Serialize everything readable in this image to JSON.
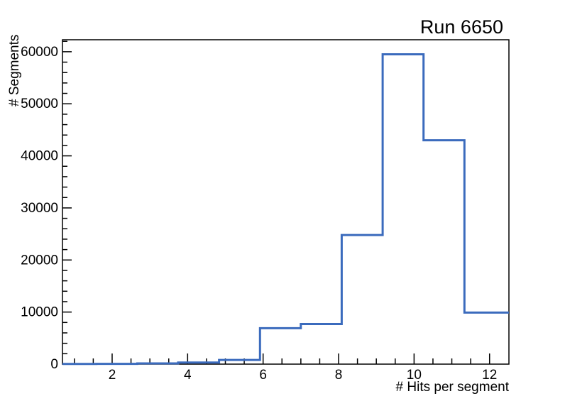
{
  "window": {
    "background": "#ffffff"
  },
  "chart_data": {
    "type": "histogram-step",
    "title": "Run 6650",
    "xlabel": "# Hits per segment",
    "ylabel": "# Segments",
    "xlim": [
      0.684,
      12.513
    ],
    "ylim": [
      0,
      62300
    ],
    "x_tick_values": [
      2,
      4,
      6,
      8,
      10,
      12
    ],
    "x_tick_labels": [
      "2",
      "4",
      "6",
      "8",
      "10",
      "12"
    ],
    "x_minor_step": 0.5,
    "y_tick_values": [
      0,
      10000,
      20000,
      30000,
      40000,
      50000,
      60000
    ],
    "y_tick_labels": [
      "0",
      "10000",
      "20000",
      "30000",
      "40000",
      "50000",
      "60000"
    ],
    "y_minor_step": 2000,
    "bin_edges": [
      0.684,
      1.583,
      2.667,
      3.75,
      4.833,
      5.917,
      7.0,
      8.083,
      9.167,
      10.25,
      11.333,
      12.513
    ],
    "counts": [
      30,
      60,
      130,
      300,
      800,
      6900,
      7700,
      24800,
      59500,
      43000,
      9900
    ],
    "line_color": "#3b6bbd",
    "line_width": 3,
    "frame_color": "#000000",
    "grid": false,
    "legend": null,
    "ticks_direction": "in"
  }
}
